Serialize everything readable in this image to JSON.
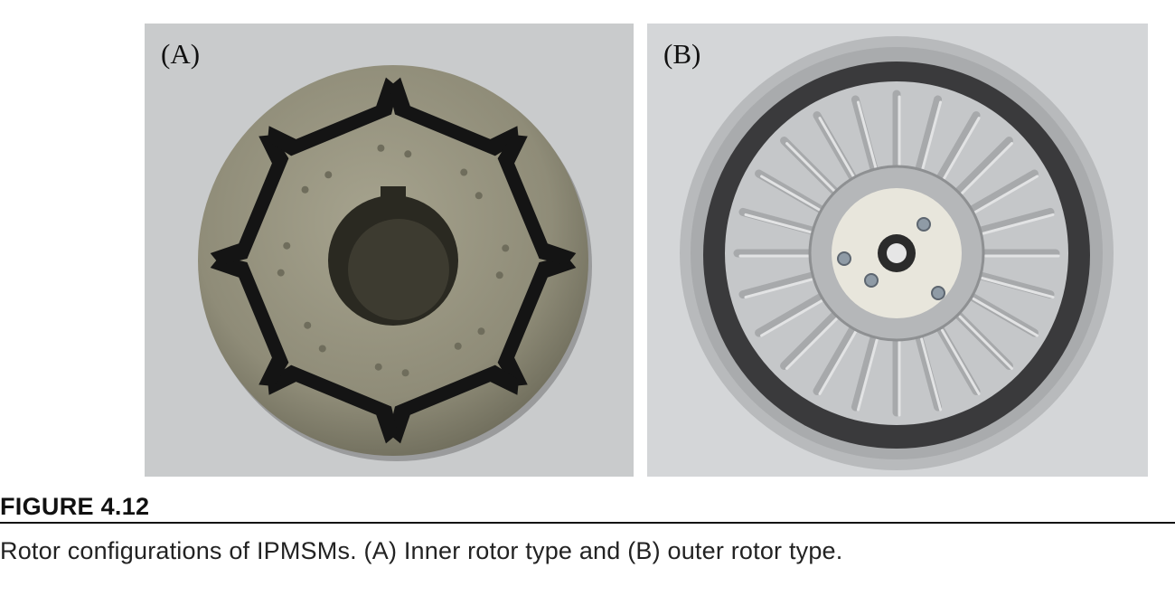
{
  "figure": {
    "panel_a_label": "(A)",
    "panel_b_label": "(B)",
    "title": "FIGURE 4.12",
    "caption": "Rotor configurations of IPMSMs. (A) Inner rotor type and (B) outer rotor type."
  },
  "colors": {
    "panel_a_background": "#c9cbcc",
    "panel_b_background": "#d4d6d8",
    "inner_rotor_metal": "#8f8c78",
    "magnet_slot": "#141414",
    "outer_rotor_ring": "#a9abad",
    "outer_rotor_magnets": "#3a3a3c",
    "hub_plate": "#e8e6dc"
  },
  "photos": {
    "panel_a_subject": "inner-rotor-photo",
    "panel_b_subject": "outer-rotor-photo"
  }
}
